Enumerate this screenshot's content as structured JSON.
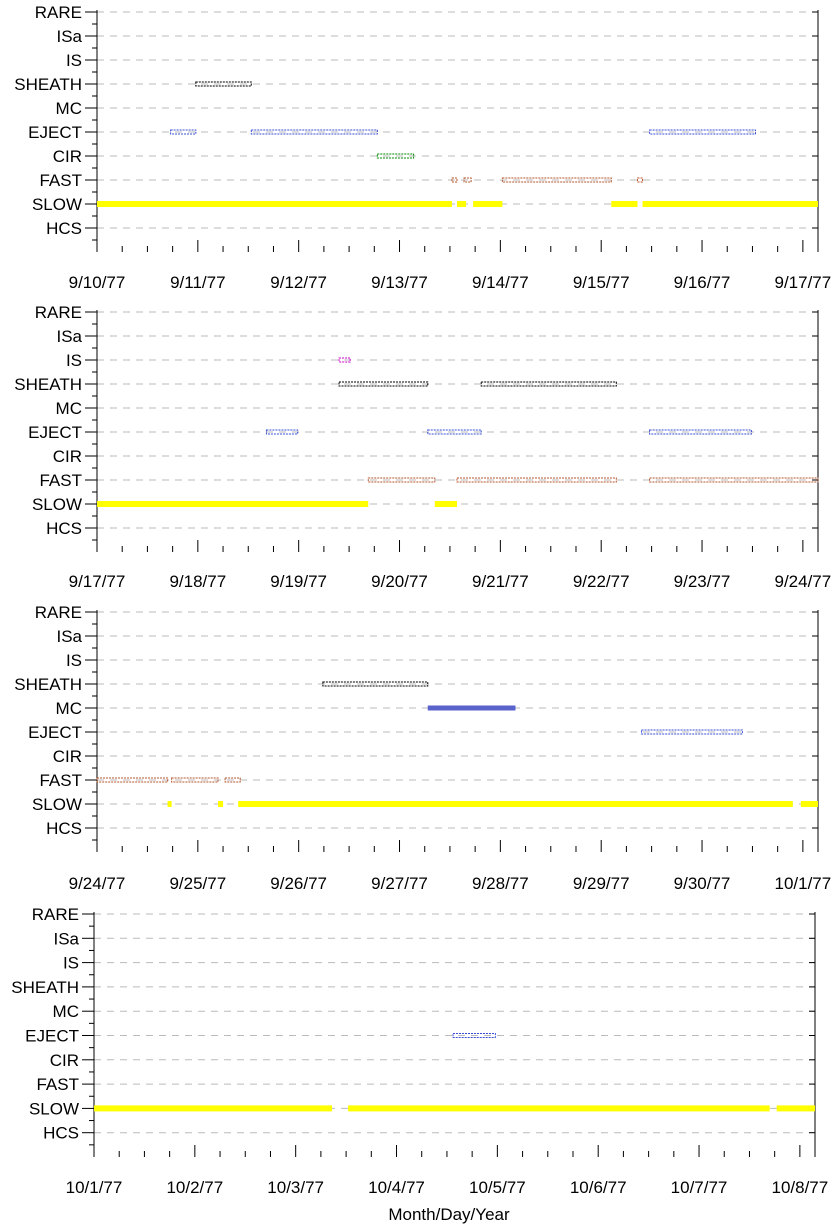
{
  "colors": {
    "grid": "#bbbbbb",
    "axis": "#000000",
    "SHEATH": "#000000",
    "IS": "#cc00cc",
    "EJECT": "#3a4fd6",
    "MC": "#5a62cc",
    "CIR": "#008800",
    "FAST": "#b4562c",
    "SLOW": "#ffff00"
  },
  "chart_data": {
    "type": "timeline",
    "xlabel": "Month/Day/Year",
    "categories": [
      "RARE",
      "ISa",
      "IS",
      "SHEATH",
      "MC",
      "EJECT",
      "CIR",
      "FAST",
      "SLOW",
      "HCS"
    ],
    "grid": true,
    "panels": [
      {
        "xticks": [
          "9/10/77",
          "9/11/77",
          "9/12/77",
          "9/13/77",
          "9/14/77",
          "9/15/77",
          "9/16/77",
          "9/17/77"
        ],
        "xlim_days": [
          0,
          7.15
        ],
        "intervals": [
          {
            "cat": "SHEATH",
            "style": "hollow",
            "start": 0.98,
            "end": 1.53
          },
          {
            "cat": "EJECT",
            "style": "hollow",
            "start": 0.73,
            "end": 0.98
          },
          {
            "cat": "EJECT",
            "style": "hollow",
            "start": 1.53,
            "end": 2.78
          },
          {
            "cat": "EJECT",
            "style": "hollow",
            "start": 5.48,
            "end": 6.53
          },
          {
            "cat": "CIR",
            "style": "hollow",
            "start": 2.78,
            "end": 3.14
          },
          {
            "cat": "FAST",
            "style": "hollow",
            "start": 3.52,
            "end": 3.57
          },
          {
            "cat": "FAST",
            "style": "hollow",
            "start": 3.64,
            "end": 3.71
          },
          {
            "cat": "FAST",
            "style": "hollow",
            "start": 4.02,
            "end": 5.1
          },
          {
            "cat": "FAST",
            "style": "hollow",
            "start": 5.36,
            "end": 5.41
          },
          {
            "cat": "SLOW",
            "style": "solid",
            "start": 0.0,
            "end": 3.52
          },
          {
            "cat": "SLOW",
            "style": "solid",
            "start": 3.57,
            "end": 3.66
          },
          {
            "cat": "SLOW",
            "style": "solid",
            "start": 3.73,
            "end": 4.02
          },
          {
            "cat": "SLOW",
            "style": "solid",
            "start": 5.1,
            "end": 5.36
          },
          {
            "cat": "SLOW",
            "style": "solid",
            "start": 5.41,
            "end": 7.15
          }
        ]
      },
      {
        "xticks": [
          "9/17/77",
          "9/18/77",
          "9/19/77",
          "9/20/77",
          "9/21/77",
          "9/22/77",
          "9/23/77",
          "9/24/77"
        ],
        "xlim_days": [
          0,
          7.15
        ],
        "intervals": [
          {
            "cat": "IS",
            "style": "hollow",
            "start": 2.4,
            "end": 2.51
          },
          {
            "cat": "SHEATH",
            "style": "hollow",
            "start": 2.4,
            "end": 3.28
          },
          {
            "cat": "SHEATH",
            "style": "hollow",
            "start": 3.81,
            "end": 5.15
          },
          {
            "cat": "EJECT",
            "style": "hollow",
            "start": 1.68,
            "end": 1.99
          },
          {
            "cat": "EJECT",
            "style": "hollow",
            "start": 3.28,
            "end": 3.81
          },
          {
            "cat": "EJECT",
            "style": "hollow",
            "start": 5.48,
            "end": 6.49
          },
          {
            "cat": "FAST",
            "style": "hollow",
            "start": 2.69,
            "end": 3.35
          },
          {
            "cat": "FAST",
            "style": "hollow",
            "start": 3.57,
            "end": 5.15
          },
          {
            "cat": "FAST",
            "style": "hollow",
            "start": 5.48,
            "end": 7.15
          },
          {
            "cat": "SLOW",
            "style": "solid",
            "start": 0.0,
            "end": 2.69
          },
          {
            "cat": "SLOW",
            "style": "solid",
            "start": 3.35,
            "end": 3.57
          }
        ]
      },
      {
        "xticks": [
          "9/24/77",
          "9/25/77",
          "9/26/77",
          "9/27/77",
          "9/28/77",
          "9/29/77",
          "9/30/77",
          "10/1/77"
        ],
        "xlim_days": [
          0,
          7.15
        ],
        "intervals": [
          {
            "cat": "SHEATH",
            "style": "hollow",
            "start": 2.24,
            "end": 3.28
          },
          {
            "cat": "MC",
            "style": "solid",
            "start": 3.28,
            "end": 4.15
          },
          {
            "cat": "EJECT",
            "style": "hollow",
            "start": 5.4,
            "end": 6.4
          },
          {
            "cat": "FAST",
            "style": "hollow",
            "start": 0.0,
            "end": 0.7
          },
          {
            "cat": "FAST",
            "style": "hollow",
            "start": 0.74,
            "end": 1.2
          },
          {
            "cat": "FAST",
            "style": "hollow",
            "start": 1.27,
            "end": 1.42
          },
          {
            "cat": "SLOW",
            "style": "solid",
            "start": 0.7,
            "end": 0.74
          },
          {
            "cat": "SLOW",
            "style": "solid",
            "start": 1.2,
            "end": 1.25
          },
          {
            "cat": "SLOW",
            "style": "solid",
            "start": 1.4,
            "end": 6.9
          },
          {
            "cat": "SLOW",
            "style": "solid",
            "start": 6.98,
            "end": 7.15
          }
        ]
      },
      {
        "xticks": [
          "10/1/77",
          "10/2/77",
          "10/3/77",
          "10/4/77",
          "10/5/77",
          "10/6/77",
          "10/7/77",
          "10/8/77"
        ],
        "xlim_days": [
          0,
          7.15
        ],
        "intervals": [
          {
            "cat": "EJECT",
            "style": "hollow",
            "start": 3.56,
            "end": 3.98
          },
          {
            "cat": "SLOW",
            "style": "solid",
            "start": 0.0,
            "end": 2.36
          },
          {
            "cat": "SLOW",
            "style": "solid",
            "start": 2.52,
            "end": 6.7
          },
          {
            "cat": "SLOW",
            "style": "solid",
            "start": 6.77,
            "end": 7.15
          }
        ]
      }
    ]
  }
}
